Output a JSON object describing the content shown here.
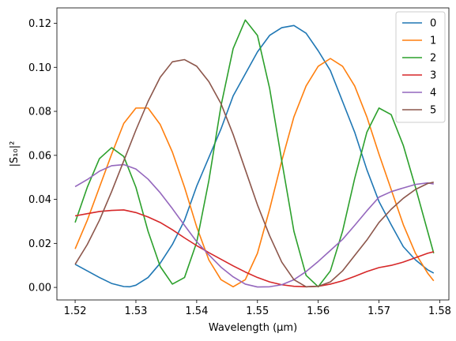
{
  "chart_data": {
    "type": "line",
    "title": "",
    "xlabel": "Wavelength (µm)",
    "ylabel": "|S₁₀|²",
    "xlim": [
      1.517,
      1.5815
    ],
    "ylim": [
      -0.0057,
      0.127
    ],
    "xticks": [
      1.52,
      1.53,
      1.54,
      1.55,
      1.56,
      1.57,
      1.58
    ],
    "xtick_labels": [
      "1.52",
      "1.53",
      "1.54",
      "1.55",
      "1.56",
      "1.57",
      "1.58"
    ],
    "yticks": [
      0.0,
      0.02,
      0.04,
      0.06,
      0.08,
      0.1,
      0.12
    ],
    "ytick_labels": [
      "0.00",
      "0.02",
      "0.04",
      "0.06",
      "0.08",
      "0.10",
      "0.12"
    ],
    "grid": false,
    "legend": {
      "position": "top-right"
    },
    "series": [
      {
        "name": "0",
        "color": "#1f77b4",
        "x": [
          1.52,
          1.522,
          1.524,
          1.526,
          1.528,
          1.529,
          1.53,
          1.532,
          1.534,
          1.536,
          1.538,
          1.54,
          1.542,
          1.544,
          1.546,
          1.548,
          1.55,
          1.552,
          1.554,
          1.556,
          1.558,
          1.56,
          1.562,
          1.564,
          1.566,
          1.568,
          1.57,
          1.572,
          1.574,
          1.576,
          1.578,
          1.579
        ],
        "y": [
          0.0105,
          0.0075,
          0.0045,
          0.0018,
          0.0004,
          0.0003,
          0.001,
          0.0045,
          0.011,
          0.0195,
          0.0305,
          0.046,
          0.059,
          0.072,
          0.087,
          0.097,
          0.107,
          0.1145,
          0.118,
          0.119,
          0.1155,
          0.1075,
          0.0985,
          0.0845,
          0.0705,
          0.0535,
          0.039,
          0.0285,
          0.0185,
          0.0125,
          0.008,
          0.0065
        ]
      },
      {
        "name": "1",
        "color": "#ff7f0e",
        "x": [
          1.52,
          1.522,
          1.524,
          1.526,
          1.528,
          1.53,
          1.532,
          1.534,
          1.536,
          1.538,
          1.54,
          1.542,
          1.544,
          1.546,
          1.548,
          1.55,
          1.552,
          1.554,
          1.556,
          1.558,
          1.56,
          1.562,
          1.564,
          1.566,
          1.568,
          1.57,
          1.572,
          1.574,
          1.576,
          1.578,
          1.579
        ],
        "y": [
          0.0175,
          0.0305,
          0.0455,
          0.0605,
          0.0745,
          0.0815,
          0.0815,
          0.074,
          0.0615,
          0.0455,
          0.0275,
          0.0125,
          0.0035,
          0.0003,
          0.0035,
          0.0155,
          0.0355,
          0.0575,
          0.0775,
          0.0915,
          0.1005,
          0.104,
          0.1005,
          0.0915,
          0.0775,
          0.0605,
          0.0445,
          0.0285,
          0.0155,
          0.0065,
          0.003
        ]
      },
      {
        "name": "2",
        "color": "#2ca02c",
        "x": [
          1.52,
          1.522,
          1.524,
          1.526,
          1.528,
          1.53,
          1.532,
          1.534,
          1.536,
          1.538,
          1.54,
          1.542,
          1.544,
          1.546,
          1.548,
          1.55,
          1.552,
          1.554,
          1.556,
          1.558,
          1.56,
          1.562,
          1.564,
          1.566,
          1.568,
          1.57,
          1.572,
          1.574,
          1.576,
          1.578,
          1.579
        ],
        "y": [
          0.0295,
          0.0455,
          0.0585,
          0.0635,
          0.0595,
          0.0455,
          0.0255,
          0.0095,
          0.0015,
          0.0045,
          0.0205,
          0.0485,
          0.0825,
          0.1085,
          0.1215,
          0.1145,
          0.0905,
          0.0575,
          0.0255,
          0.0055,
          0.0003,
          0.0075,
          0.0255,
          0.0495,
          0.0705,
          0.0815,
          0.0785,
          0.0645,
          0.0455,
          0.0255,
          0.0155
        ]
      },
      {
        "name": "3",
        "color": "#d62728",
        "x": [
          1.52,
          1.522,
          1.524,
          1.526,
          1.528,
          1.53,
          1.532,
          1.534,
          1.536,
          1.538,
          1.54,
          1.542,
          1.544,
          1.546,
          1.548,
          1.55,
          1.552,
          1.554,
          1.556,
          1.558,
          1.56,
          1.562,
          1.564,
          1.566,
          1.568,
          1.57,
          1.572,
          1.574,
          1.576,
          1.578,
          1.579
        ],
        "y": [
          0.0325,
          0.0335,
          0.0345,
          0.035,
          0.0352,
          0.034,
          0.032,
          0.0295,
          0.0262,
          0.0225,
          0.019,
          0.0158,
          0.0128,
          0.0098,
          0.007,
          0.0045,
          0.0025,
          0.0012,
          0.0005,
          0.0003,
          0.0005,
          0.0015,
          0.003,
          0.005,
          0.0072,
          0.009,
          0.01,
          0.0115,
          0.0135,
          0.0155,
          0.0162
        ]
      },
      {
        "name": "4",
        "color": "#9467bd",
        "x": [
          1.52,
          1.522,
          1.524,
          1.526,
          1.528,
          1.53,
          1.532,
          1.534,
          1.536,
          1.538,
          1.54,
          1.542,
          1.544,
          1.546,
          1.548,
          1.55,
          1.552,
          1.554,
          1.556,
          1.558,
          1.56,
          1.562,
          1.564,
          1.566,
          1.568,
          1.57,
          1.572,
          1.574,
          1.576,
          1.578,
          1.579
        ],
        "y": [
          0.0458,
          0.049,
          0.0528,
          0.0553,
          0.0558,
          0.0538,
          0.0492,
          0.043,
          0.0358,
          0.0282,
          0.0208,
          0.0148,
          0.0092,
          0.0048,
          0.0015,
          0.0002,
          0.0003,
          0.0012,
          0.0035,
          0.0072,
          0.0118,
          0.0168,
          0.0218,
          0.0282,
          0.0348,
          0.041,
          0.0435,
          0.0452,
          0.0468,
          0.0475,
          0.047
        ]
      },
      {
        "name": "5",
        "color": "#8c564b",
        "x": [
          1.52,
          1.522,
          1.524,
          1.526,
          1.528,
          1.53,
          1.532,
          1.534,
          1.536,
          1.538,
          1.54,
          1.542,
          1.544,
          1.546,
          1.548,
          1.55,
          1.552,
          1.554,
          1.556,
          1.558,
          1.56,
          1.562,
          1.564,
          1.566,
          1.568,
          1.57,
          1.572,
          1.574,
          1.576,
          1.578,
          1.579
        ],
        "y": [
          0.0105,
          0.0195,
          0.0305,
          0.0435,
          0.0575,
          0.0715,
          0.0845,
          0.0955,
          0.1025,
          0.1035,
          0.1005,
          0.0935,
          0.0835,
          0.0695,
          0.0535,
          0.0375,
          0.0235,
          0.0115,
          0.0035,
          0.0003,
          0.0005,
          0.0025,
          0.0075,
          0.0145,
          0.0215,
          0.0295,
          0.0355,
          0.0405,
          0.0445,
          0.0472,
          0.0478
        ]
      }
    ]
  }
}
